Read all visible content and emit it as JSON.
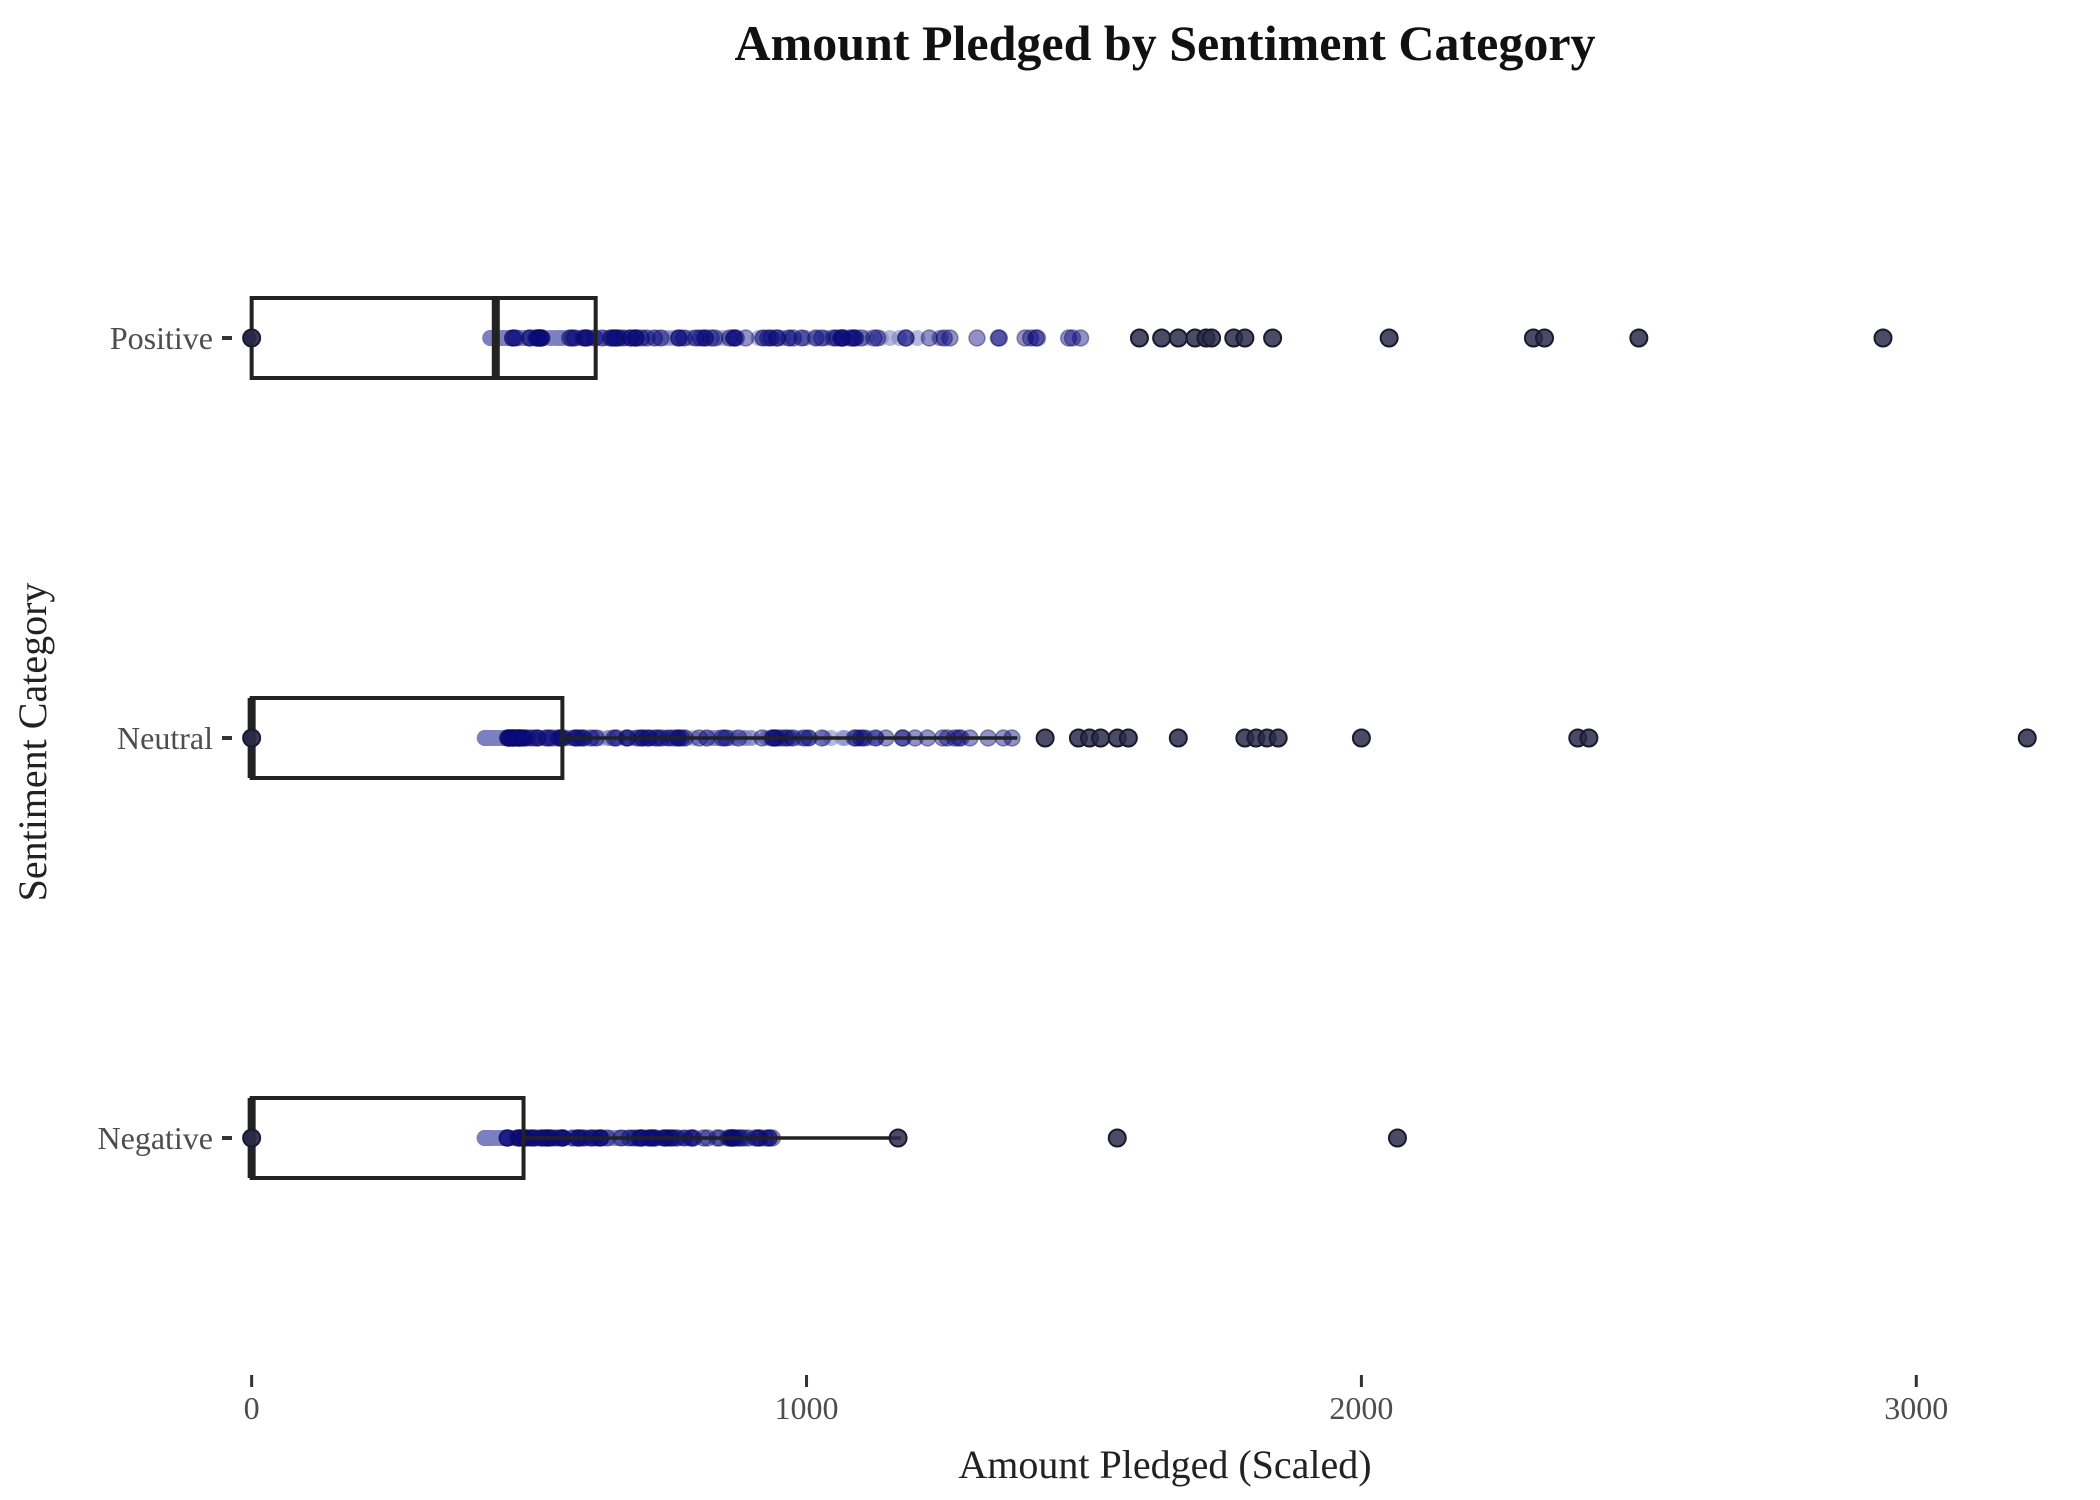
{
  "chart_data": {
    "type": "box",
    "orientation": "horizontal",
    "title": "Amount Pledged by Sentiment Category",
    "xlabel": "Amount Pledged (Scaled)",
    "ylabel": "Sentiment Category",
    "xlim": [
      -30,
      3250
    ],
    "x_ticks": [
      0,
      1000,
      2000,
      3000
    ],
    "x_tick_labels": [
      "0",
      "1000",
      "2000",
      "3000"
    ],
    "grid": false,
    "colors": {
      "box": "#222222",
      "jitter_points": "#7b7fc0",
      "jitter_points_dark": "#0a0a80",
      "outliers": "#2b2b4a"
    },
    "categories": [
      "Positive",
      "Neutral",
      "Negative"
    ],
    "boxes": [
      {
        "category": "Positive",
        "q1": 0,
        "median": 440,
        "q3": 620,
        "whisker_low": 0,
        "whisker_high": 620,
        "jitter_range": [
          430,
          1520
        ],
        "outliers": [
          0,
          1600,
          1640,
          1670,
          1700,
          1720,
          1730,
          1770,
          1790,
          1840,
          2050,
          2310,
          2330,
          2500,
          2940
        ]
      },
      {
        "category": "Neutral",
        "q1": 0,
        "median": 0,
        "q3": 560,
        "whisker_low": 0,
        "whisker_high": 1380,
        "jitter_range": [
          420,
          1380
        ],
        "outliers": [
          0,
          1430,
          1490,
          1510,
          1530,
          1560,
          1580,
          1670,
          1790,
          1810,
          1830,
          1850,
          2000,
          2390,
          2410,
          3200
        ]
      },
      {
        "category": "Negative",
        "q1": 0,
        "median": 0,
        "q3": 490,
        "whisker_low": 0,
        "whisker_high": 1170,
        "jitter_range": [
          420,
          940
        ],
        "outliers": [
          0,
          1165,
          1560,
          2065
        ]
      }
    ]
  }
}
